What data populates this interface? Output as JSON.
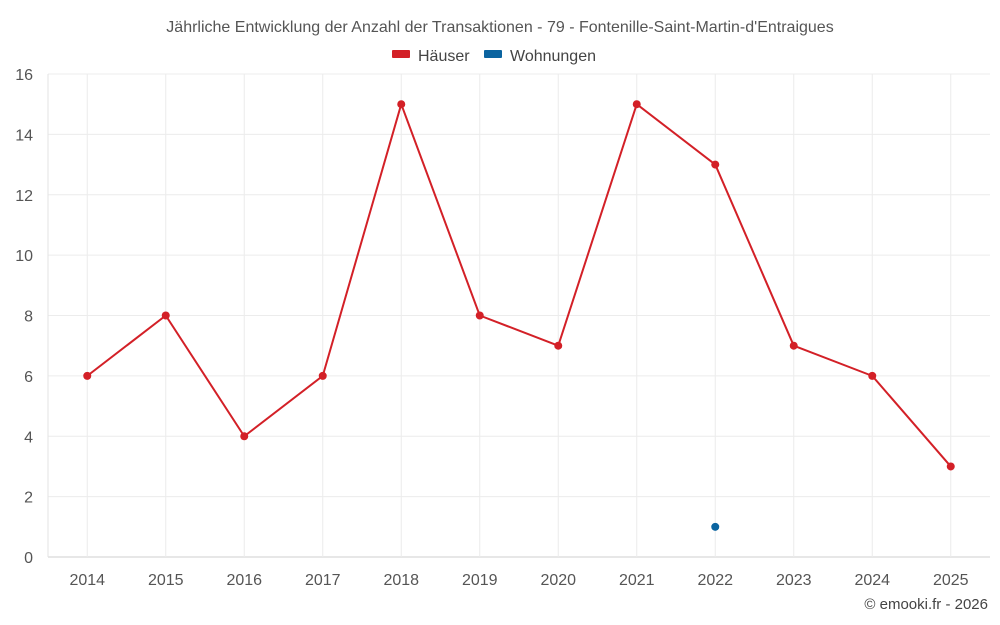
{
  "chart_data": {
    "type": "line",
    "title": "Jährliche Entwicklung der Anzahl der Transaktionen - 79 - Fontenille-Saint-Martin-d'Entraigues",
    "categories": [
      "2014",
      "2015",
      "2016",
      "2017",
      "2018",
      "2019",
      "2020",
      "2021",
      "2022",
      "2023",
      "2024",
      "2025"
    ],
    "series": [
      {
        "name": "Häuser",
        "color": "#d32027",
        "values": [
          6,
          8,
          4,
          6,
          15,
          8,
          7,
          15,
          13,
          7,
          6,
          3
        ]
      },
      {
        "name": "Wohnungen",
        "color": "#0b64a0",
        "values": [
          null,
          null,
          null,
          null,
          null,
          null,
          null,
          null,
          1,
          null,
          null,
          null
        ]
      }
    ],
    "ylim": [
      0,
      16
    ],
    "yticks": [
      0,
      2,
      4,
      6,
      8,
      10,
      12,
      14,
      16
    ],
    "xlabel": "",
    "ylabel": "",
    "grid": true,
    "legend_position": "top-center"
  },
  "credit": "© emooki.fr - 2026"
}
